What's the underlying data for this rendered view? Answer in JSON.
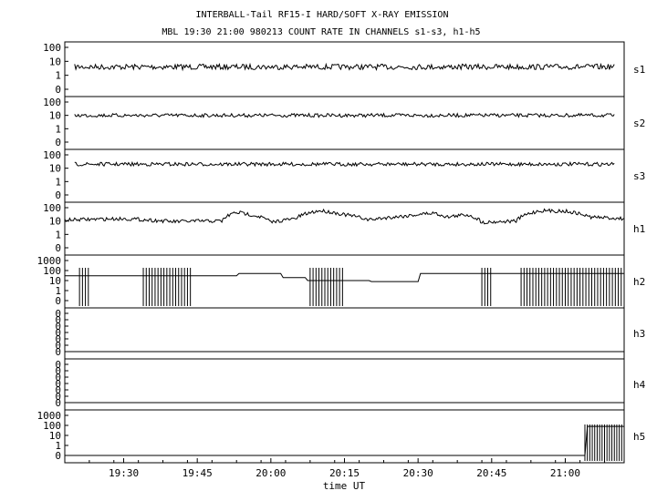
{
  "titles": {
    "line1": "INTERBALL-Tail RF15-I HARD/SOFT X-RAY EMISSION",
    "line2": "MBL 19:30 21:00 980213  COUNT RATE IN CHANNELS s1-s3, h1-h5"
  },
  "xlabel": "time UT",
  "chart_data": {
    "type": "line",
    "x_range": [
      "19:18",
      "21:12"
    ],
    "x_ticks": [
      "19:30",
      "19:45",
      "20:00",
      "20:15",
      "20:30",
      "20:45",
      "21:00"
    ],
    "scale": "log",
    "series": [
      {
        "name": "s1",
        "ytick_labels": [
          "100",
          "10",
          "1",
          "0"
        ],
        "x": [
          "19:20",
          "19:30",
          "19:40",
          "19:50",
          "20:00",
          "20:10",
          "20:20",
          "20:30",
          "20:40",
          "20:50",
          "21:00",
          "21:10"
        ],
        "values": [
          4,
          4,
          4,
          4,
          4,
          4,
          4,
          4,
          4,
          4,
          4,
          4
        ]
      },
      {
        "name": "s2",
        "ytick_labels": [
          "100",
          "10",
          "1",
          "0"
        ],
        "x": [
          "19:20",
          "19:30",
          "19:40",
          "19:50",
          "20:00",
          "20:10",
          "20:20",
          "20:30",
          "20:40",
          "20:50",
          "21:00",
          "21:10"
        ],
        "values": [
          10,
          10,
          10,
          10,
          10,
          10,
          10,
          10,
          10,
          10,
          10,
          10
        ]
      },
      {
        "name": "s3",
        "ytick_labels": [
          "100",
          "10",
          "1",
          "0"
        ],
        "x": [
          "19:20",
          "19:30",
          "19:40",
          "19:50",
          "20:00",
          "20:10",
          "20:20",
          "20:30",
          "20:40",
          "20:50",
          "21:00",
          "21:10"
        ],
        "values": [
          20,
          20,
          20,
          20,
          20,
          20,
          20,
          20,
          20,
          20,
          20,
          20
        ]
      },
      {
        "name": "h1",
        "ytick_labels": [
          "100",
          "10",
          "1",
          "0"
        ],
        "x": [
          "19:18",
          "19:30",
          "19:40",
          "19:45",
          "19:50",
          "19:53",
          "19:58",
          "20:00",
          "20:05",
          "20:10",
          "20:15",
          "20:20",
          "20:28",
          "20:33",
          "20:36",
          "20:40",
          "20:43",
          "20:50",
          "20:55",
          "21:00",
          "21:05",
          "21:12"
        ],
        "values": [
          12,
          15,
          9,
          10,
          10,
          45,
          20,
          8,
          15,
          60,
          30,
          12,
          25,
          40,
          20,
          30,
          8,
          10,
          60,
          55,
          20,
          15
        ]
      },
      {
        "name": "h2",
        "ytick_labels": [
          "1000",
          "100",
          "10",
          "1",
          "0"
        ],
        "x": [
          "19:18",
          "19:38",
          "19:53",
          "19:58",
          "20:02",
          "20:07",
          "20:14",
          "20:20",
          "20:30",
          "20:43",
          "20:50",
          "21:12"
        ],
        "values": [
          30,
          30,
          50,
          50,
          20,
          10,
          10,
          8,
          50,
          50,
          50,
          50
        ]
      },
      {
        "name": "h3",
        "ytick_labels": [
          "0",
          "0",
          "0",
          "0",
          "0",
          "0",
          "0"
        ],
        "x": [
          "19:18",
          "21:12"
        ],
        "values": [
          0,
          0
        ]
      },
      {
        "name": "h4",
        "ytick_labels": [
          "0",
          "0",
          "0",
          "0",
          "0",
          "0",
          "0"
        ],
        "x": [
          "19:18",
          "21:12"
        ],
        "values": [
          0,
          0
        ]
      },
      {
        "name": "h5",
        "ytick_labels": [
          "1000",
          "100",
          "10",
          "1",
          "0"
        ],
        "x": [
          "19:18",
          "21:04",
          "21:04",
          "21:12"
        ],
        "values": [
          0,
          0,
          80,
          80
        ]
      }
    ]
  }
}
